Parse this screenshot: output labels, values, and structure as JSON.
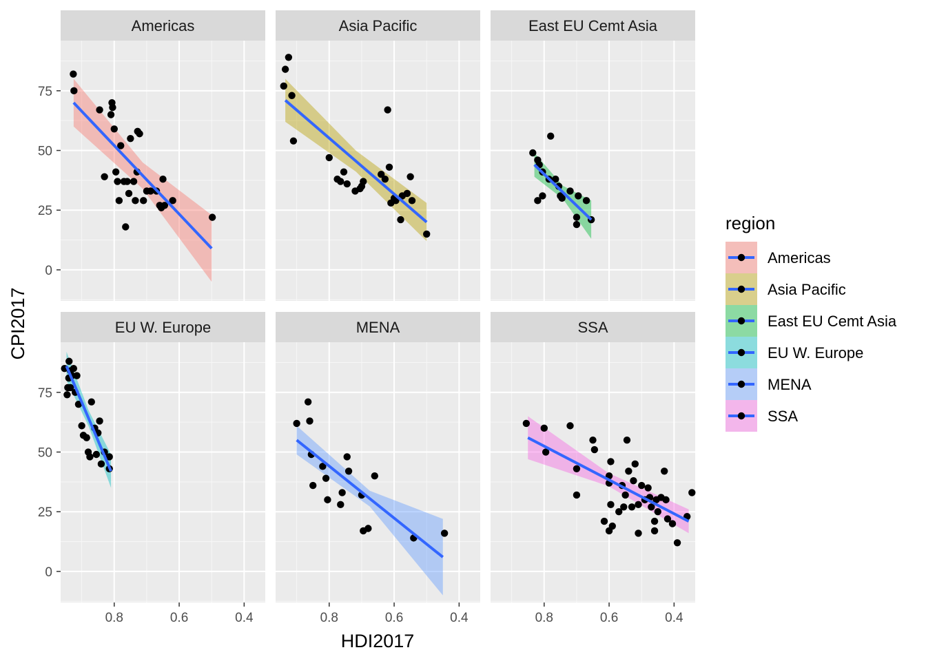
{
  "chart_data": {
    "type": "scatter",
    "facet_by": "region",
    "xlabel": "HDI2017",
    "ylabel": "CPI2017",
    "x_reversed": true,
    "xlim": [
      0.965,
      0.335
    ],
    "ylim": [
      -13,
      96
    ],
    "x_ticks": [
      0.8,
      0.6,
      0.4
    ],
    "x_tick_labels": [
      "0.8",
      "0.6",
      "0.4"
    ],
    "y_ticks": [
      0,
      25,
      50,
      75
    ],
    "y_tick_labels": [
      "0",
      "25",
      "50",
      "75"
    ],
    "grid": true,
    "smooth": "lm",
    "smooth_line_color": "#3366FF",
    "legend": {
      "title": "region",
      "position": "right"
    },
    "facets": [
      {
        "name": "Americas",
        "fill": "#F8766D",
        "fit": {
          "x": [
            0.925,
            0.5
          ],
          "y": [
            70,
            9
          ]
        },
        "band_halfwidth": [
          10,
          14
        ],
        "points": [
          [
            0.926,
            82
          ],
          [
            0.924,
            75
          ],
          [
            0.845,
            67
          ],
          [
            0.81,
            65
          ],
          [
            0.807,
            70
          ],
          [
            0.805,
            68
          ],
          [
            0.8,
            59
          ],
          [
            0.83,
            39
          ],
          [
            0.795,
            41
          ],
          [
            0.79,
            37
          ],
          [
            0.785,
            29
          ],
          [
            0.78,
            52
          ],
          [
            0.77,
            37
          ],
          [
            0.76,
            37
          ],
          [
            0.765,
            18
          ],
          [
            0.755,
            32
          ],
          [
            0.75,
            55
          ],
          [
            0.74,
            37
          ],
          [
            0.735,
            29
          ],
          [
            0.728,
            58
          ],
          [
            0.722,
            57
          ],
          [
            0.73,
            41
          ],
          [
            0.71,
            29
          ],
          [
            0.7,
            33
          ],
          [
            0.688,
            33
          ],
          [
            0.67,
            33
          ],
          [
            0.66,
            27
          ],
          [
            0.655,
            26
          ],
          [
            0.65,
            38
          ],
          [
            0.645,
            27
          ],
          [
            0.62,
            29
          ],
          [
            0.498,
            22
          ]
        ]
      },
      {
        "name": "Asia Pacific",
        "fill": "#B79F00",
        "fit": {
          "x": [
            0.935,
            0.5
          ],
          "y": [
            71,
            20
          ]
        },
        "band_halfwidth": [
          9,
          8
        ],
        "points": [
          [
            0.94,
            77
          ],
          [
            0.935,
            84
          ],
          [
            0.925,
            89
          ],
          [
            0.915,
            73
          ],
          [
            0.91,
            54
          ],
          [
            0.8,
            47
          ],
          [
            0.775,
            38
          ],
          [
            0.765,
            37
          ],
          [
            0.755,
            41
          ],
          [
            0.745,
            36
          ],
          [
            0.72,
            33
          ],
          [
            0.705,
            34
          ],
          [
            0.7,
            35
          ],
          [
            0.695,
            37
          ],
          [
            0.64,
            40
          ],
          [
            0.628,
            38
          ],
          [
            0.62,
            67
          ],
          [
            0.61,
            28
          ],
          [
            0.615,
            43
          ],
          [
            0.6,
            30
          ],
          [
            0.595,
            29
          ],
          [
            0.58,
            21
          ],
          [
            0.575,
            31
          ],
          [
            0.56,
            32
          ],
          [
            0.55,
            39
          ],
          [
            0.545,
            29
          ],
          [
            0.5,
            15
          ]
        ]
      },
      {
        "name": "East EU Cemt Asia",
        "fill": "#00BA38",
        "fit": {
          "x": [
            0.83,
            0.655
          ],
          "y": [
            44,
            21
          ]
        },
        "band_halfwidth": [
          5,
          8
        ],
        "points": [
          [
            0.835,
            49
          ],
          [
            0.82,
            46
          ],
          [
            0.815,
            44
          ],
          [
            0.805,
            41
          ],
          [
            0.82,
            29
          ],
          [
            0.805,
            31
          ],
          [
            0.78,
            56
          ],
          [
            0.785,
            38
          ],
          [
            0.765,
            38
          ],
          [
            0.755,
            35
          ],
          [
            0.75,
            31
          ],
          [
            0.745,
            30
          ],
          [
            0.72,
            33
          ],
          [
            0.7,
            22
          ],
          [
            0.7,
            19
          ],
          [
            0.695,
            31
          ],
          [
            0.67,
            29
          ],
          [
            0.655,
            21
          ]
        ]
      },
      {
        "name": "EU W. Europe",
        "fill": "#00BFC4",
        "fit": {
          "x": [
            0.947,
            0.81
          ],
          "y": [
            86,
            42
          ]
        },
        "band_halfwidth": [
          6,
          7
        ],
        "points": [
          [
            0.953,
            85
          ],
          [
            0.939,
            88
          ],
          [
            0.935,
            84
          ],
          [
            0.925,
            85
          ],
          [
            0.943,
            77
          ],
          [
            0.94,
            81
          ],
          [
            0.93,
            82
          ],
          [
            0.915,
            82
          ],
          [
            0.945,
            74
          ],
          [
            0.935,
            77
          ],
          [
            0.92,
            75
          ],
          [
            0.91,
            70
          ],
          [
            0.9,
            61
          ],
          [
            0.895,
            57
          ],
          [
            0.885,
            56
          ],
          [
            0.88,
            50
          ],
          [
            0.875,
            48
          ],
          [
            0.87,
            71
          ],
          [
            0.86,
            60
          ],
          [
            0.855,
            49
          ],
          [
            0.85,
            58
          ],
          [
            0.845,
            63
          ],
          [
            0.84,
            45
          ],
          [
            0.83,
            50
          ],
          [
            0.815,
            48
          ],
          [
            0.815,
            43
          ]
        ]
      },
      {
        "name": "MENA",
        "fill": "#619CFF",
        "fit": {
          "x": [
            0.9,
            0.45
          ],
          "y": [
            55,
            6
          ]
        },
        "band_halfwidth": [
          6,
          16
        ],
        "points": [
          [
            0.9,
            62
          ],
          [
            0.865,
            71
          ],
          [
            0.86,
            63
          ],
          [
            0.855,
            49
          ],
          [
            0.85,
            36
          ],
          [
            0.82,
            44
          ],
          [
            0.81,
            39
          ],
          [
            0.805,
            30
          ],
          [
            0.765,
            28
          ],
          [
            0.76,
            33
          ],
          [
            0.745,
            48
          ],
          [
            0.74,
            42
          ],
          [
            0.7,
            32
          ],
          [
            0.66,
            40
          ],
          [
            0.695,
            17
          ],
          [
            0.68,
            18
          ],
          [
            0.54,
            14
          ],
          [
            0.445,
            16
          ]
        ]
      },
      {
        "name": "SSA",
        "fill": "#F564E3",
        "fit": {
          "x": [
            0.85,
            0.355
          ],
          "y": [
            56,
            21
          ]
        },
        "band_halfwidth": [
          9,
          5
        ],
        "points": [
          [
            0.855,
            62
          ],
          [
            0.8,
            60
          ],
          [
            0.795,
            50
          ],
          [
            0.72,
            61
          ],
          [
            0.7,
            43
          ],
          [
            0.7,
            32
          ],
          [
            0.65,
            55
          ],
          [
            0.645,
            51
          ],
          [
            0.6,
            40
          ],
          [
            0.6,
            37
          ],
          [
            0.595,
            46
          ],
          [
            0.595,
            28
          ],
          [
            0.59,
            19
          ],
          [
            0.6,
            17
          ],
          [
            0.615,
            21
          ],
          [
            0.57,
            25
          ],
          [
            0.56,
            36
          ],
          [
            0.555,
            27
          ],
          [
            0.55,
            32
          ],
          [
            0.545,
            55
          ],
          [
            0.54,
            42
          ],
          [
            0.53,
            27
          ],
          [
            0.525,
            38
          ],
          [
            0.52,
            45
          ],
          [
            0.51,
            28
          ],
          [
            0.51,
            16
          ],
          [
            0.5,
            36
          ],
          [
            0.49,
            30
          ],
          [
            0.48,
            35
          ],
          [
            0.475,
            31
          ],
          [
            0.47,
            27
          ],
          [
            0.46,
            21
          ],
          [
            0.46,
            17
          ],
          [
            0.455,
            30
          ],
          [
            0.45,
            25
          ],
          [
            0.44,
            31
          ],
          [
            0.43,
            42
          ],
          [
            0.425,
            30
          ],
          [
            0.42,
            22
          ],
          [
            0.405,
            20
          ],
          [
            0.39,
            12
          ],
          [
            0.36,
            23
          ],
          [
            0.345,
            33
          ]
        ]
      }
    ]
  }
}
